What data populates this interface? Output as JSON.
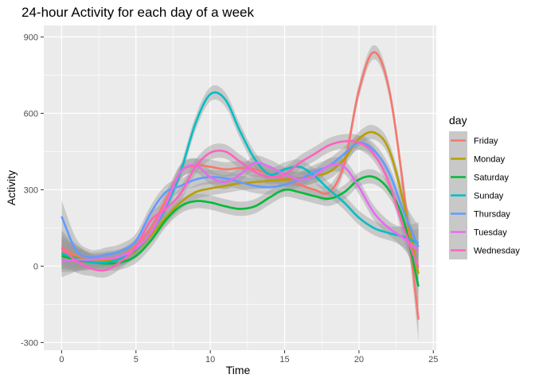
{
  "chart_data": {
    "type": "line",
    "title": "24-hour Activity for each day of a week",
    "xlabel": "Time",
    "ylabel": "Activity",
    "xlim": [
      -1.2,
      25.2
    ],
    "ylim": [
      -330,
      945
    ],
    "xticks": [
      0,
      5,
      10,
      15,
      20,
      25
    ],
    "yticks": [
      -300,
      0,
      300,
      600,
      900
    ],
    "legend": {
      "title": "day",
      "position": "right"
    },
    "grid": true,
    "confidence_band": true,
    "series": [
      {
        "name": "Friday",
        "color": "#F8766D",
        "x": [
          0,
          1,
          2,
          3,
          4,
          5,
          6,
          7,
          8,
          9,
          10,
          11,
          12,
          13,
          14,
          15,
          16,
          17,
          18,
          19,
          20,
          21,
          22,
          23,
          24
        ],
        "y": [
          75,
          40,
          20,
          25,
          40,
          80,
          150,
          260,
          370,
          395,
          390,
          380,
          385,
          380,
          360,
          340,
          320,
          300,
          290,
          400,
          690,
          840,
          700,
          300,
          -210
        ]
      },
      {
        "name": "Monday",
        "color": "#B79F00",
        "x": [
          0,
          1,
          2,
          3,
          4,
          5,
          6,
          7,
          8,
          9,
          10,
          11,
          12,
          13,
          14,
          15,
          16,
          17,
          18,
          19,
          20,
          21,
          22,
          23,
          24
        ],
        "y": [
          55,
          35,
          20,
          20,
          30,
          60,
          120,
          190,
          250,
          290,
          305,
          315,
          325,
          330,
          335,
          340,
          345,
          355,
          370,
          420,
          500,
          525,
          460,
          250,
          -30
        ]
      },
      {
        "name": "Saturday",
        "color": "#00BA38",
        "x": [
          0,
          1,
          2,
          3,
          4,
          5,
          6,
          7,
          8,
          9,
          10,
          11,
          12,
          13,
          14,
          15,
          16,
          17,
          18,
          19,
          20,
          21,
          22,
          23,
          24
        ],
        "y": [
          40,
          25,
          15,
          10,
          15,
          40,
          100,
          180,
          235,
          255,
          250,
          235,
          225,
          235,
          270,
          300,
          290,
          275,
          265,
          290,
          340,
          350,
          300,
          180,
          -80
        ]
      },
      {
        "name": "Sunday",
        "color": "#00BFC4",
        "x": [
          0,
          1,
          2,
          3,
          4,
          5,
          6,
          7,
          8,
          9,
          10,
          11,
          12,
          13,
          14,
          15,
          16,
          17,
          18,
          19,
          20,
          21,
          22,
          23,
          24
        ],
        "y": [
          50,
          30,
          15,
          15,
          30,
          65,
          130,
          230,
          370,
          560,
          675,
          655,
          530,
          420,
          360,
          380,
          390,
          355,
          300,
          250,
          190,
          150,
          130,
          115,
          90
        ]
      },
      {
        "name": "Thursday",
        "color": "#619CFF",
        "x": [
          0,
          1,
          2,
          3,
          4,
          5,
          6,
          7,
          8,
          9,
          10,
          11,
          12,
          13,
          14,
          15,
          16,
          17,
          18,
          19,
          20,
          21,
          22,
          23,
          24
        ],
        "y": [
          195,
          60,
          35,
          45,
          60,
          100,
          210,
          290,
          315,
          340,
          350,
          345,
          330,
          315,
          310,
          320,
          340,
          370,
          395,
          440,
          485,
          455,
          370,
          215,
          75
        ]
      },
      {
        "name": "Tuesday",
        "color": "#E76BF3",
        "x": [
          0,
          1,
          2,
          3,
          4,
          5,
          6,
          7,
          8,
          9,
          10,
          11,
          12,
          13,
          14,
          15,
          16,
          17,
          18,
          19,
          20,
          21,
          22,
          23,
          24
        ],
        "y": [
          20,
          25,
          25,
          30,
          40,
          70,
          130,
          240,
          370,
          395,
          350,
          330,
          360,
          405,
          390,
          360,
          340,
          355,
          395,
          390,
          310,
          210,
          150,
          110,
          60
        ]
      },
      {
        "name": "Wednesday",
        "color": "#FF61C3",
        "x": [
          0,
          1,
          2,
          3,
          4,
          5,
          6,
          7,
          8,
          9,
          10,
          11,
          12,
          13,
          14,
          15,
          16,
          17,
          18,
          19,
          20,
          21,
          22,
          23,
          24
        ],
        "y": [
          70,
          20,
          -10,
          -15,
          20,
          75,
          180,
          225,
          285,
          390,
          445,
          450,
          410,
          370,
          350,
          360,
          405,
          440,
          475,
          490,
          485,
          440,
          330,
          150,
          -5
        ]
      }
    ]
  }
}
